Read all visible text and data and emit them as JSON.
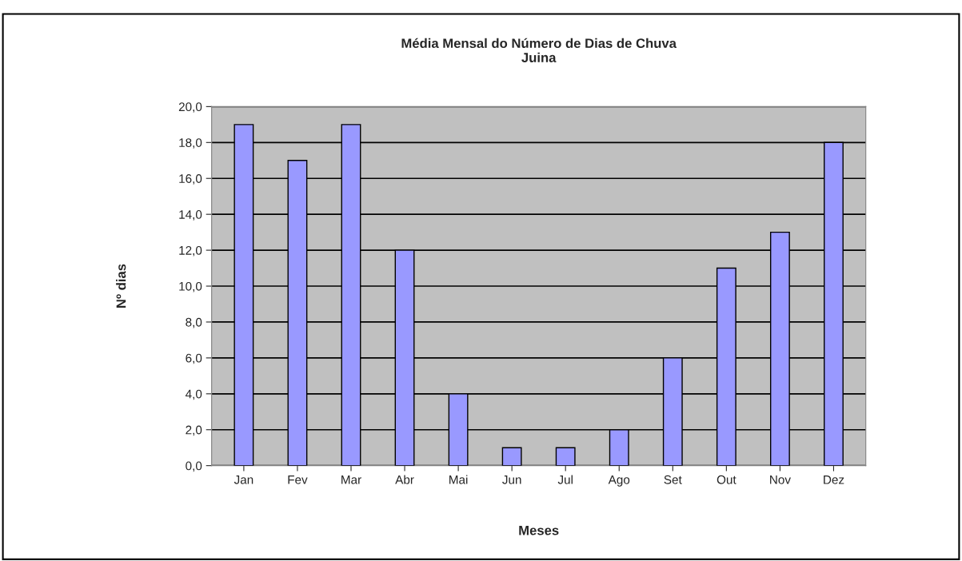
{
  "chart_data": {
    "type": "bar",
    "title": "Média Mensal do Número de Dias de Chuva\nJuina",
    "xlabel": "Meses",
    "ylabel": "Nº dias",
    "categories": [
      "Jan",
      "Fev",
      "Mar",
      "Abr",
      "Mai",
      "Jun",
      "Jul",
      "Ago",
      "Set",
      "Out",
      "Nov",
      "Dez"
    ],
    "values": [
      19,
      17,
      19,
      12,
      4,
      1,
      1,
      2,
      6,
      11,
      13,
      18
    ],
    "color": "#9999ff",
    "ylim": [
      0,
      20
    ],
    "yticks": [
      {
        "value": 0,
        "label": "0,0"
      },
      {
        "value": 2,
        "label": "2,0"
      },
      {
        "value": 4,
        "label": "4,0"
      },
      {
        "value": 6,
        "label": "6,0"
      },
      {
        "value": 8,
        "label": "8,0"
      },
      {
        "value": 10,
        "label": "10,0"
      },
      {
        "value": 12,
        "label": "12,0"
      },
      {
        "value": 14,
        "label": "14,0"
      },
      {
        "value": 16,
        "label": "16,0"
      },
      {
        "value": 18,
        "label": "18,0"
      },
      {
        "value": 20,
        "label": "20,0"
      }
    ],
    "grid": "y"
  }
}
